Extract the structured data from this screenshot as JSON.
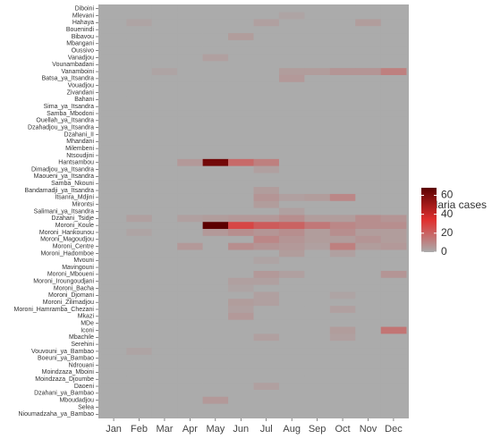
{
  "chart_data": {
    "type": "heatmap",
    "x": [
      "Jan",
      "Feb",
      "Mar",
      "Apr",
      "May",
      "Jun",
      "Jul",
      "Aug",
      "Sep",
      "Oct",
      "Nov",
      "Dec"
    ],
    "y": [
      "Diboini",
      "Mlevani",
      "Hahaya",
      "Bouenindi",
      "Bibavou",
      "Mbangani",
      "Oussivo",
      "Vanadjou",
      "Vounambadani",
      "Vanamboini",
      "Batsa_ya_Itsandra",
      "Vouadjou",
      "Zivandani",
      "Bahani",
      "Sima_ya_Itsandra",
      "Samba_Mbodoni",
      "Ouellah_ya_Itsandra",
      "Dzahadjou_ya_Itsandra",
      "Dzahani_II",
      "Mhandani",
      "Milembeni",
      "Ntsoudjini",
      "Hantsambou",
      "Dimadjou_ya_Itsandra",
      "Maoueni_ya_Itsandra",
      "Samba_Nkouni",
      "Bandamadji_ya_Itsandra",
      "Itsanra_Mdjini",
      "Mirontsi",
      "Salimani_ya_Itsandra",
      "Dzahani_Tsidje",
      "Moroni_Koule",
      "Moroni_Hankounou",
      "Moroni_Magoudjou",
      "Moroni_Centre",
      "Moroni_Hadomboe",
      "Mvouni",
      "Mavingouni",
      "Moroni_Mboueni",
      "Moroni_Iroungoudjani",
      "Moroni_Bacha",
      "Moroni_Djomani",
      "Moroni_Zilimadjou",
      "Moroni_Hamramba_Chezani",
      "Mkazi",
      "MDe",
      "Iconi",
      "Mbachile",
      "Serehini",
      "Vouvouni_ya_Bambao",
      "Boeuni_ya_Bambao",
      "Ndrouani",
      "Moindzaza_Mboini",
      "Moindzaza_Djoumbe",
      "Daoeni",
      "Dzahani_ya_Bambao",
      "Mboudadjou",
      "Selea",
      "Nioumadzaha_ya_Bambao"
    ],
    "values": [
      [
        0,
        0,
        0,
        0,
        0,
        0,
        0,
        0,
        0,
        0,
        0,
        0
      ],
      [
        0,
        0,
        0,
        0,
        0,
        0,
        0,
        2,
        0,
        0,
        0,
        0
      ],
      [
        0,
        2,
        0,
        0,
        0,
        0,
        3,
        0,
        0,
        0,
        4,
        0
      ],
      [
        0,
        0,
        0,
        0,
        0,
        0,
        0,
        0,
        0,
        0,
        0,
        0
      ],
      [
        0,
        0,
        0,
        0,
        0,
        4,
        0,
        0,
        0,
        0,
        0,
        0
      ],
      [
        0,
        0,
        0,
        0,
        0,
        0,
        0,
        0,
        0,
        0,
        0,
        0
      ],
      [
        0,
        0,
        0,
        0,
        0,
        0,
        0,
        0,
        0,
        0,
        0,
        0
      ],
      [
        0,
        0,
        0,
        0,
        3,
        0,
        0,
        0,
        0,
        0,
        0,
        0
      ],
      [
        0,
        0,
        0,
        0,
        0,
        0,
        0,
        0,
        0,
        0,
        0,
        0
      ],
      [
        0,
        0,
        2,
        0,
        0,
        0,
        0,
        4,
        4,
        6,
        6,
        12
      ],
      [
        0,
        0,
        0,
        0,
        0,
        0,
        0,
        5,
        0,
        0,
        0,
        0
      ],
      [
        0,
        0,
        0,
        0,
        0,
        0,
        0,
        0,
        0,
        0,
        0,
        0
      ],
      [
        0,
        0,
        0,
        0,
        0,
        0,
        0,
        0,
        0,
        0,
        0,
        0
      ],
      [
        0,
        0,
        0,
        0,
        0,
        0,
        0,
        0,
        0,
        0,
        0,
        0
      ],
      [
        0,
        0,
        0,
        0,
        0,
        0,
        0,
        0,
        0,
        0,
        0,
        0
      ],
      [
        0,
        0,
        0,
        0,
        0,
        0,
        0,
        0,
        0,
        0,
        0,
        0
      ],
      [
        0,
        0,
        0,
        0,
        0,
        0,
        0,
        0,
        0,
        0,
        0,
        0
      ],
      [
        0,
        0,
        0,
        0,
        0,
        0,
        0,
        0,
        0,
        0,
        0,
        0
      ],
      [
        0,
        0,
        0,
        0,
        0,
        0,
        0,
        0,
        0,
        0,
        0,
        0
      ],
      [
        0,
        0,
        0,
        0,
        0,
        0,
        0,
        0,
        0,
        0,
        0,
        0
      ],
      [
        0,
        0,
        0,
        0,
        0,
        0,
        0,
        0,
        0,
        0,
        0,
        0
      ],
      [
        0,
        0,
        0,
        0,
        0,
        0,
        0,
        0,
        0,
        0,
        0,
        0
      ],
      [
        0,
        0,
        0,
        5,
        62,
        18,
        12,
        0,
        0,
        0,
        0,
        0
      ],
      [
        0,
        0,
        0,
        0,
        0,
        0,
        3,
        0,
        0,
        0,
        0,
        0
      ],
      [
        0,
        0,
        0,
        0,
        0,
        0,
        0,
        0,
        0,
        0,
        0,
        0
      ],
      [
        0,
        0,
        0,
        0,
        0,
        0,
        0,
        0,
        0,
        0,
        0,
        0
      ],
      [
        0,
        0,
        0,
        0,
        0,
        0,
        4,
        0,
        0,
        0,
        0,
        0
      ],
      [
        0,
        0,
        0,
        0,
        0,
        0,
        6,
        3,
        4,
        10,
        0,
        0
      ],
      [
        0,
        0,
        0,
        0,
        0,
        0,
        4,
        0,
        0,
        0,
        0,
        0
      ],
      [
        0,
        0,
        0,
        0,
        0,
        0,
        0,
        3,
        0,
        0,
        0,
        0
      ],
      [
        0,
        3,
        0,
        3,
        4,
        5,
        5,
        8,
        4,
        4,
        8,
        6
      ],
      [
        0,
        0,
        0,
        0,
        68,
        28,
        22,
        20,
        14,
        10,
        8,
        8
      ],
      [
        0,
        2,
        0,
        0,
        5,
        8,
        6,
        8,
        4,
        8,
        4,
        4
      ],
      [
        0,
        0,
        0,
        0,
        0,
        0,
        10,
        6,
        4,
        4,
        6,
        4
      ],
      [
        0,
        0,
        0,
        5,
        0,
        8,
        6,
        5,
        3,
        12,
        4,
        5
      ],
      [
        0,
        0,
        0,
        0,
        0,
        0,
        0,
        4,
        0,
        3,
        0,
        0
      ],
      [
        0,
        0,
        0,
        0,
        0,
        0,
        2,
        0,
        0,
        0,
        0,
        0
      ],
      [
        0,
        0,
        0,
        0,
        0,
        0,
        0,
        0,
        0,
        0,
        0,
        0
      ],
      [
        0,
        0,
        0,
        0,
        0,
        0,
        5,
        3,
        0,
        0,
        0,
        6
      ],
      [
        0,
        0,
        0,
        0,
        0,
        3,
        3,
        0,
        0,
        0,
        0,
        0
      ],
      [
        0,
        0,
        0,
        0,
        0,
        2,
        0,
        0,
        0,
        0,
        0,
        0
      ],
      [
        0,
        0,
        0,
        0,
        0,
        0,
        3,
        0,
        0,
        2,
        0,
        0
      ],
      [
        0,
        0,
        0,
        0,
        0,
        4,
        3,
        0,
        0,
        0,
        0,
        0
      ],
      [
        0,
        0,
        0,
        0,
        0,
        3,
        0,
        0,
        0,
        3,
        0,
        0
      ],
      [
        0,
        0,
        0,
        0,
        0,
        5,
        0,
        0,
        0,
        0,
        0,
        0
      ],
      [
        0,
        0,
        0,
        0,
        0,
        0,
        0,
        0,
        0,
        0,
        0,
        0
      ],
      [
        0,
        0,
        0,
        0,
        0,
        0,
        0,
        0,
        0,
        4,
        0,
        15
      ],
      [
        0,
        0,
        0,
        0,
        0,
        0,
        3,
        0,
        0,
        3,
        0,
        0
      ],
      [
        0,
        0,
        0,
        0,
        0,
        0,
        0,
        0,
        0,
        0,
        0,
        0
      ],
      [
        0,
        2,
        0,
        0,
        0,
        0,
        0,
        0,
        0,
        0,
        0,
        0
      ],
      [
        0,
        0,
        0,
        0,
        0,
        0,
        0,
        0,
        0,
        0,
        0,
        0
      ],
      [
        0,
        0,
        0,
        0,
        0,
        0,
        0,
        0,
        0,
        0,
        0,
        0
      ],
      [
        0,
        0,
        0,
        0,
        0,
        0,
        0,
        0,
        0,
        0,
        0,
        0
      ],
      [
        0,
        0,
        0,
        0,
        0,
        0,
        0,
        0,
        0,
        0,
        0,
        0
      ],
      [
        0,
        0,
        0,
        0,
        0,
        0,
        3,
        0,
        0,
        0,
        0,
        0
      ],
      [
        0,
        0,
        0,
        0,
        0,
        0,
        0,
        0,
        0,
        0,
        0,
        0
      ],
      [
        0,
        0,
        0,
        0,
        5,
        0,
        0,
        0,
        0,
        0,
        0,
        0
      ],
      [
        0,
        0,
        0,
        0,
        0,
        0,
        0,
        0,
        0,
        0,
        0,
        0
      ],
      [
        0,
        0,
        0,
        0,
        0,
        0,
        0,
        0,
        0,
        0,
        0,
        0
      ]
    ],
    "colors": [
      "#ababab",
      "#e0302f",
      "#5c0000"
    ],
    "colorbar_title": "Malaria cases",
    "colorlim": [
      0,
      68
    ],
    "colorticks": [
      0,
      20,
      40,
      60
    ]
  }
}
